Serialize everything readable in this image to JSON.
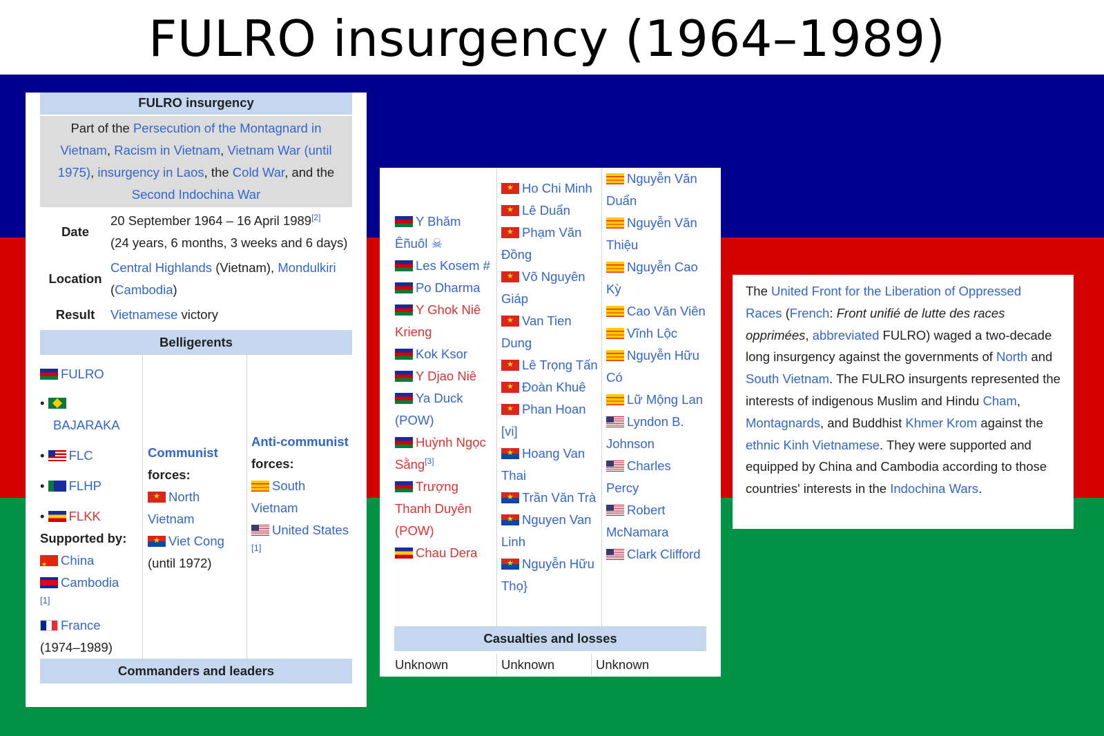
{
  "page_title": "FULRO insurgency (1964–1989)",
  "infobox": {
    "title": "FULRO insurgency",
    "part_of_prefix": "Part of the ",
    "part_of_links": [
      "Persecution of the Montagnard in Vietnam",
      "Racism in Vietnam",
      "Vietnam War (until 1975)",
      "insurgency in Laos",
      "Cold War",
      "Second Indochina War"
    ],
    "date_label": "Date",
    "date_value": "20 September 1964 – 16 April 1989",
    "date_ref": "[2]",
    "date_duration": "(24 years, 6 months, 3 weeks and 6 days)",
    "location_label": "Location",
    "location_link1": "Central Highlands",
    "location_mid": " (Vietnam), ",
    "location_link2": "Mondulkiri",
    "location_link3": "Cambodia",
    "result_label": "Result",
    "result_link": "Vietnamese",
    "result_text": " victory",
    "belligerents_header": "Belligerents",
    "side1": {
      "fulro": "FULRO",
      "bajaraka": "BAJARAKA",
      "flc": "FLC",
      "flhp": "FLHP",
      "flkk": "FLKK",
      "supported_by": "Supported by:",
      "china": "China",
      "cambodia": "Cambodia",
      "cambodia_ref": "[1]",
      "france": "France",
      "france_years": "(1974–1989)"
    },
    "side2": {
      "heading": "Communist",
      "heading_rest": "forces:",
      "north": "North Vietnam",
      "vc": "Viet Cong",
      "vc_note": "(until 1972)"
    },
    "side3": {
      "heading": "Anti-communist",
      "heading_rest": "forces:",
      "svn": "South Vietnam",
      "us": "United States",
      "us_ref": "[1]"
    },
    "commanders_header": "Commanders and leaders"
  },
  "commanders": {
    "fulro": [
      "Y Bhăm Êñuôl ☠",
      "Les Kosem #",
      "Po Dharma",
      "Y Ghok Niê Krieng",
      "Kok Ksor",
      "Y Djao Niê",
      "Ya Duck (POW)",
      "Huỳnh Ngọc Sằng",
      "Trượng Thanh Duyên (POW)",
      "Chau Dera"
    ],
    "huynh_ref": "[3]",
    "communist": [
      "Ho Chi Minh",
      "Lê Duẩn",
      "Phạm Văn Đồng",
      "Võ Nguyên Giáp",
      "Van Tien Dung",
      "Lê Trọng Tấn",
      "Đoàn Khuê",
      "Phan Hoan [vi]",
      "Hoang Van Thai",
      "Trần Văn Trà",
      "Nguyen Van Linh",
      "Nguyễn Hữu Thọ}"
    ],
    "anti_communist": [
      "Nguyễn Văn Duẩn",
      "Nguyễn Văn Thiệu",
      "Nguyễn Cao Kỳ",
      "Cao Văn Viên",
      "Vĩnh Lộc",
      "Nguyễn Hữu Có",
      "Lữ Mộng Lan",
      "Lyndon B. Johnson",
      "Charles Percy",
      "Robert McNamara",
      "Clark Clifford"
    ],
    "casualties_header": "Casualties and losses",
    "casualties": [
      "Unknown",
      "Unknown",
      "Unknown"
    ]
  },
  "summary": {
    "t1": "The ",
    "l1": "United Front for the Liberation of Oppressed Races",
    "t2": " (",
    "l2": "French",
    "t3": ": ",
    "i1": "Front unifié de lutte des races opprimées",
    "t4": ", ",
    "l3": "abbreviated",
    "t5": " FULRO) waged a two-decade long insurgency against the governments of ",
    "l4": "North",
    "t6": " and ",
    "l5": "South Vietnam",
    "t7": ". The FULRO insurgents represented the interests of indigenous Muslim and Hindu ",
    "l6": "Cham",
    "t8": ", ",
    "l7": "Montagnards",
    "t9": ", and Buddhist ",
    "l8": "Khmer Krom",
    "t10": " against the ",
    "l9": "ethnic Kinh Vietnamese",
    "t11": ". They were supported and equipped by China and Cambodia according to those countries' interests in the ",
    "l10": "Indochina Wars",
    "t12": "."
  }
}
